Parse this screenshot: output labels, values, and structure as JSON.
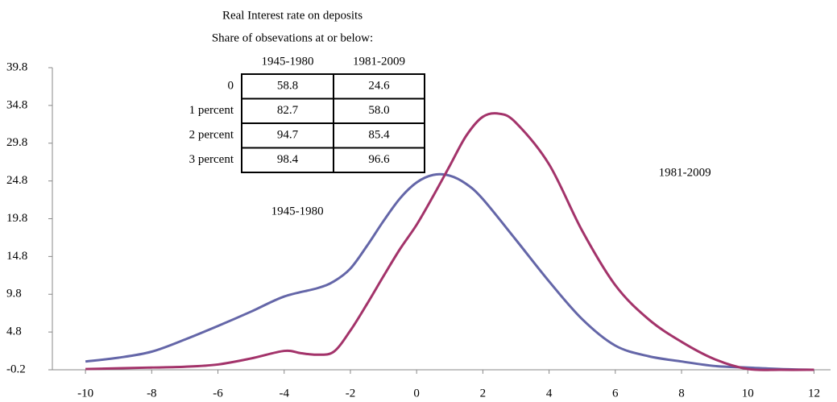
{
  "chart_data": {
    "type": "line",
    "title": "Real Interest rate on deposits",
    "subtitle": "Share of obsevations at or below:",
    "xlim": [
      -11,
      12.5
    ],
    "xticks": [
      -10,
      -8,
      -6,
      -4,
      -2,
      0,
      2,
      4,
      6,
      8,
      10,
      12
    ],
    "ylim": [
      -0.2,
      39.8
    ],
    "yticks": [
      -0.2,
      4.8,
      9.8,
      14.8,
      19.8,
      24.8,
      29.8,
      34.8,
      39.8
    ],
    "series": [
      {
        "name": "1945-1980",
        "color": "#6466a8",
        "x": [
          -10,
          -9,
          -8,
          -7,
          -6,
          -5,
          -4,
          -3,
          -2.5,
          -2,
          -1.5,
          -1,
          -0.5,
          0,
          0.5,
          1,
          1.5,
          2,
          3,
          4,
          5,
          6,
          7,
          8,
          9,
          10,
          11,
          12
        ],
        "values": [
          0.9,
          1.4,
          2.2,
          3.8,
          5.6,
          7.5,
          9.5,
          10.6,
          11.5,
          13.2,
          16.2,
          19.5,
          22.5,
          24.6,
          25.6,
          25.5,
          24.4,
          22.4,
          17,
          11.5,
          6.5,
          3,
          1.6,
          0.9,
          0.3,
          0.1,
          -0.1,
          -0.2
        ]
      },
      {
        "name": "1981-2009",
        "color": "#a3336a",
        "x": [
          -10,
          -9,
          -8,
          -7,
          -6,
          -5,
          -4,
          -3.5,
          -3,
          -2.5,
          -2,
          -1.5,
          -1,
          -0.5,
          0,
          0.5,
          1,
          1.5,
          2,
          2.5,
          3,
          4,
          5,
          6,
          7,
          8,
          9,
          10,
          11,
          12
        ],
        "values": [
          -0.1,
          0,
          0.1,
          0.2,
          0.5,
          1.3,
          2.3,
          2.0,
          1.8,
          2.2,
          5.0,
          8.5,
          12.2,
          15.8,
          19.0,
          22.8,
          26.8,
          30.8,
          33.3,
          33.7,
          32.5,
          27,
          18.2,
          11,
          6.5,
          3.5,
          1.2,
          -0.1,
          -0.2,
          -0.2
        ]
      }
    ],
    "annotations": [
      {
        "text": "1945-1980",
        "x": -3.6,
        "y": 20.7
      },
      {
        "text": "1981-2009",
        "x": 8.1,
        "y": 25.8
      }
    ],
    "table": {
      "columns": [
        "1945-1980",
        "1981-2009"
      ],
      "rows": [
        {
          "label": "0",
          "cells": [
            "58.8",
            "24.6"
          ]
        },
        {
          "label": "1 percent",
          "cells": [
            "82.7",
            "58.0"
          ]
        },
        {
          "label": "2 percent",
          "cells": [
            "94.7",
            "85.4"
          ]
        },
        {
          "label": "3 percent",
          "cells": [
            "98.4",
            "96.6"
          ]
        }
      ]
    }
  }
}
